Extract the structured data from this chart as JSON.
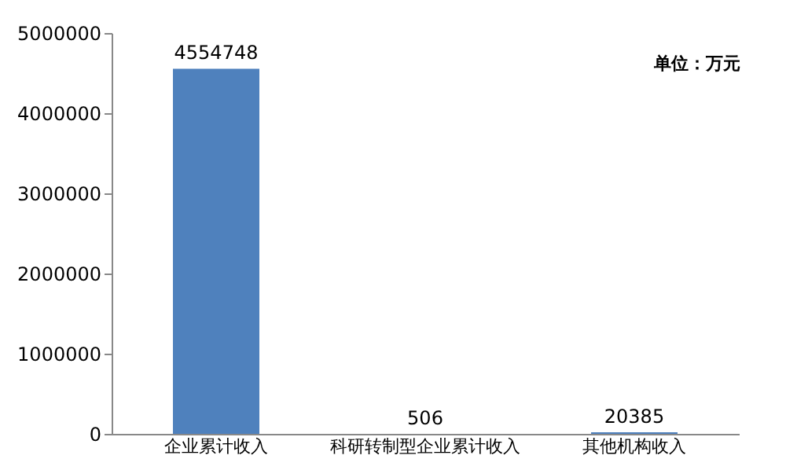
{
  "chart_data": {
    "type": "bar",
    "categories": [
      "企业累计收入",
      "科研转制型企业累计收入",
      "其他机构收入"
    ],
    "values": [
      4554748,
      506,
      20385
    ],
    "color": "#4f81bd",
    "data_labels": true,
    "ylim": [
      0,
      5000000
    ],
    "yticks": [
      0,
      1000000,
      2000000,
      3000000,
      4000000,
      5000000
    ],
    "grid": false,
    "annotations": [
      "单位：万元"
    ]
  }
}
